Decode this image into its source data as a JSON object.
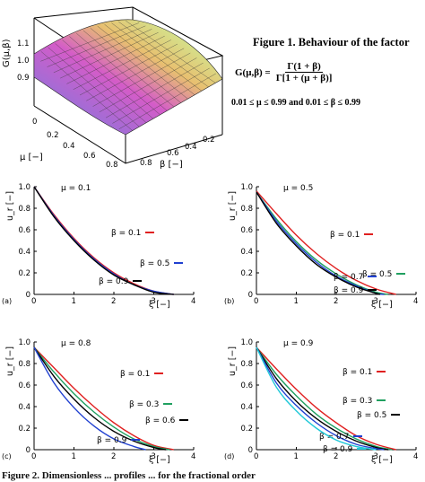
{
  "figure1": {
    "caption": "Figure 1. Behaviour of the factor",
    "formula_lhs": "G(μ,β) =",
    "formula_num": "Γ(1 + β)",
    "formula_den": "Γ[1 + (μ + β)]",
    "range_text": "0.01 ≤ μ ≤ 0.99  and  0.01 ≤ β ≤ 0.99"
  },
  "bottom_caption": "Figure 2. Dimensionless ... profiles ... for the fractional order",
  "surface_plot": {
    "zlabel": "G(μ,β)",
    "xlabel": "μ [−]",
    "ylabel": "β [−]",
    "z_ticks": [
      "0.9",
      "1.0",
      "1.1"
    ],
    "mu_ticks": [
      "0",
      "0.2",
      "0.4",
      "0.6",
      "0.8"
    ],
    "beta_ticks": [
      "0.2",
      "0.4",
      "0.6",
      "0.8"
    ],
    "colors": [
      "#5ad3f0",
      "#9a6fd8",
      "#d45cc8",
      "#e8c070",
      "#d0e890",
      "#80e0a0"
    ]
  },
  "chart_data": [
    {
      "panel": "(a)",
      "type": "line",
      "mu_label": "μ = 0.1",
      "xlabel": "ξ [−]",
      "ylabel": "u_r [−]",
      "xlim": [
        0,
        4
      ],
      "ylim": [
        0,
        1.0
      ],
      "x_ticks": [
        "0",
        "1",
        "2",
        "3",
        "4"
      ],
      "y_ticks": [
        "0",
        "0.2",
        "0.4",
        "0.6",
        "0.8",
        "1.0"
      ],
      "series": [
        {
          "name": "β = 0.1",
          "color": "#e02020",
          "x": [
            0,
            0.5,
            1,
            1.5,
            2,
            2.5,
            3,
            3.5
          ],
          "y": [
            1.0,
            0.74,
            0.52,
            0.34,
            0.2,
            0.1,
            0.03,
            0
          ]
        },
        {
          "name": "β = 0.5",
          "color": "#2040d0",
          "x": [
            0,
            0.5,
            1,
            1.5,
            2,
            2.5,
            3,
            3.5
          ],
          "y": [
            1.0,
            0.73,
            0.51,
            0.33,
            0.19,
            0.09,
            0.03,
            0
          ]
        },
        {
          "name": "β = 0.9",
          "color": "#000000",
          "x": [
            0,
            0.5,
            1,
            1.5,
            2,
            2.5,
            3,
            3.5
          ],
          "y": [
            1.0,
            0.72,
            0.5,
            0.32,
            0.18,
            0.09,
            0.02,
            0
          ]
        }
      ]
    },
    {
      "panel": "(b)",
      "type": "line",
      "mu_label": "μ = 0.5",
      "xlabel": "ξ [−]",
      "ylabel": "u_r [−]",
      "xlim": [
        0,
        4
      ],
      "ylim": [
        0,
        1.0
      ],
      "x_ticks": [
        "0",
        "1",
        "2",
        "3",
        "4"
      ],
      "y_ticks": [
        "0",
        "0.2",
        "0.4",
        "0.6",
        "0.8",
        "1.0"
      ],
      "series": [
        {
          "name": "β = 0.1",
          "color": "#e02020",
          "x": [
            0,
            0.5,
            1,
            1.5,
            2,
            2.5,
            3,
            3.5
          ],
          "y": [
            0.96,
            0.75,
            0.55,
            0.38,
            0.24,
            0.13,
            0.05,
            0
          ]
        },
        {
          "name": "β = 0.5",
          "color": "#20a060",
          "x": [
            0,
            0.5,
            1,
            1.5,
            2,
            2.5,
            3,
            3.3
          ],
          "y": [
            0.95,
            0.7,
            0.49,
            0.32,
            0.19,
            0.09,
            0.02,
            0
          ]
        },
        {
          "name": "β = 0.7",
          "color": "#2040d0",
          "x": [
            0,
            0.5,
            1,
            1.5,
            2,
            2.5,
            3,
            3.2
          ],
          "y": [
            0.95,
            0.68,
            0.47,
            0.3,
            0.17,
            0.08,
            0.01,
            0
          ]
        },
        {
          "name": "β = 0.9",
          "color": "#000000",
          "x": [
            0,
            0.5,
            1,
            1.5,
            2,
            2.5,
            3,
            3.1
          ],
          "y": [
            0.95,
            0.66,
            0.45,
            0.28,
            0.16,
            0.07,
            0.01,
            0
          ]
        }
      ]
    },
    {
      "panel": "(c)",
      "type": "line",
      "mu_label": "μ = 0.8",
      "xlabel": "ξ [−]",
      "ylabel": "u_r [−]",
      "xlim": [
        0,
        4
      ],
      "ylim": [
        0,
        1.0
      ],
      "x_ticks": [
        "0",
        "1",
        "2",
        "3",
        "4"
      ],
      "y_ticks": [
        "0",
        "0.2",
        "0.4",
        "0.6",
        "0.8",
        "1.0"
      ],
      "series": [
        {
          "name": "β = 0.1",
          "color": "#e02020",
          "x": [
            0,
            0.5,
            1,
            1.5,
            2,
            2.5,
            3,
            3.5
          ],
          "y": [
            0.95,
            0.76,
            0.57,
            0.4,
            0.25,
            0.13,
            0.04,
            0
          ]
        },
        {
          "name": "β = 0.3",
          "color": "#20a060",
          "x": [
            0,
            0.5,
            1,
            1.5,
            2,
            2.5,
            3,
            3.4
          ],
          "y": [
            0.95,
            0.72,
            0.52,
            0.35,
            0.21,
            0.1,
            0.03,
            0
          ]
        },
        {
          "name": "β = 0.6",
          "color": "#000000",
          "x": [
            0,
            0.5,
            1,
            1.5,
            2,
            2.5,
            3,
            3.3
          ],
          "y": [
            0.95,
            0.68,
            0.47,
            0.3,
            0.17,
            0.08,
            0.02,
            0
          ]
        },
        {
          "name": "β = 0.9",
          "color": "#2040d0",
          "x": [
            0,
            0.5,
            1,
            1.5,
            2,
            2.5,
            2.8
          ],
          "y": [
            0.95,
            0.62,
            0.39,
            0.22,
            0.1,
            0.03,
            0
          ]
        }
      ]
    },
    {
      "panel": "(d)",
      "type": "line",
      "mu_label": "μ = 0.9",
      "xlabel": "ξ [−]",
      "ylabel": "u_r [−]",
      "xlim": [
        0,
        4
      ],
      "ylim": [
        0,
        1.0
      ],
      "x_ticks": [
        "0",
        "1",
        "2",
        "3",
        "4"
      ],
      "y_ticks": [
        "0",
        "0.2",
        "0.4",
        "0.6",
        "0.8",
        "1.0"
      ],
      "series": [
        {
          "name": "β = 0.1",
          "color": "#e02020",
          "x": [
            0,
            0.5,
            1,
            1.5,
            2,
            2.5,
            3,
            3.5
          ],
          "y": [
            0.95,
            0.75,
            0.56,
            0.39,
            0.25,
            0.13,
            0.05,
            0
          ]
        },
        {
          "name": "β = 0.3",
          "color": "#20a060",
          "x": [
            0,
            0.5,
            1,
            1.5,
            2,
            2.5,
            3,
            3.4
          ],
          "y": [
            0.95,
            0.7,
            0.5,
            0.33,
            0.2,
            0.1,
            0.03,
            0
          ]
        },
        {
          "name": "β = 0.5",
          "color": "#000000",
          "x": [
            0,
            0.5,
            1,
            1.5,
            2,
            2.5,
            3,
            3.3
          ],
          "y": [
            0.95,
            0.66,
            0.45,
            0.29,
            0.17,
            0.08,
            0.02,
            0
          ]
        },
        {
          "name": "β = 0.7",
          "color": "#2040d0",
          "x": [
            0,
            0.5,
            1,
            1.5,
            2,
            2.5,
            3,
            3.2
          ],
          "y": [
            0.95,
            0.62,
            0.41,
            0.25,
            0.13,
            0.05,
            0.01,
            0
          ]
        },
        {
          "name": "β = 0.9",
          "color": "#20c8d8",
          "x": [
            0,
            0.5,
            1,
            1.5,
            2,
            2.5,
            3
          ],
          "y": [
            0.95,
            0.58,
            0.36,
            0.2,
            0.09,
            0.03,
            0
          ]
        }
      ]
    }
  ]
}
